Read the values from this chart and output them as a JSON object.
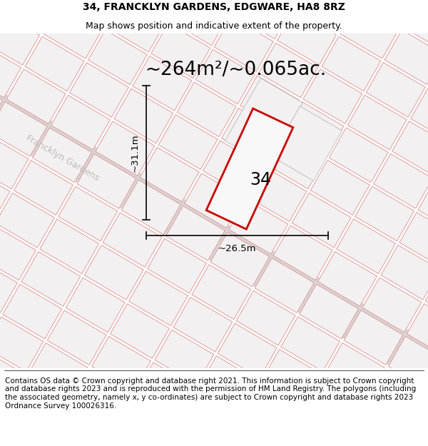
{
  "title_line1": "34, FRANCKLYN GARDENS, EDGWARE, HA8 8RZ",
  "title_line2": "Map shows position and indicative extent of the property.",
  "footer_text": "Contains OS data © Crown copyright and database right 2021. This information is subject to Crown copyright and database rights 2023 and is reproduced with the permission of HM Land Registry. The polygons (including the associated geometry, namely x, y co-ordinates) are subject to Crown copyright and database rights 2023 Ordnance Survey 100026316.",
  "area_label": "~264m²/~0.065ac.",
  "height_label": "~31.1m",
  "width_label": "~26.5m",
  "property_number": "34",
  "street_label": "Francklyn Gardens",
  "title_fontsize": 10,
  "subtitle_fontsize": 9,
  "area_fontsize": 19,
  "footer_fontsize": 7.5,
  "property_number_fontsize": 17,
  "street_fontsize": 9,
  "dim_fontsize": 9.5
}
